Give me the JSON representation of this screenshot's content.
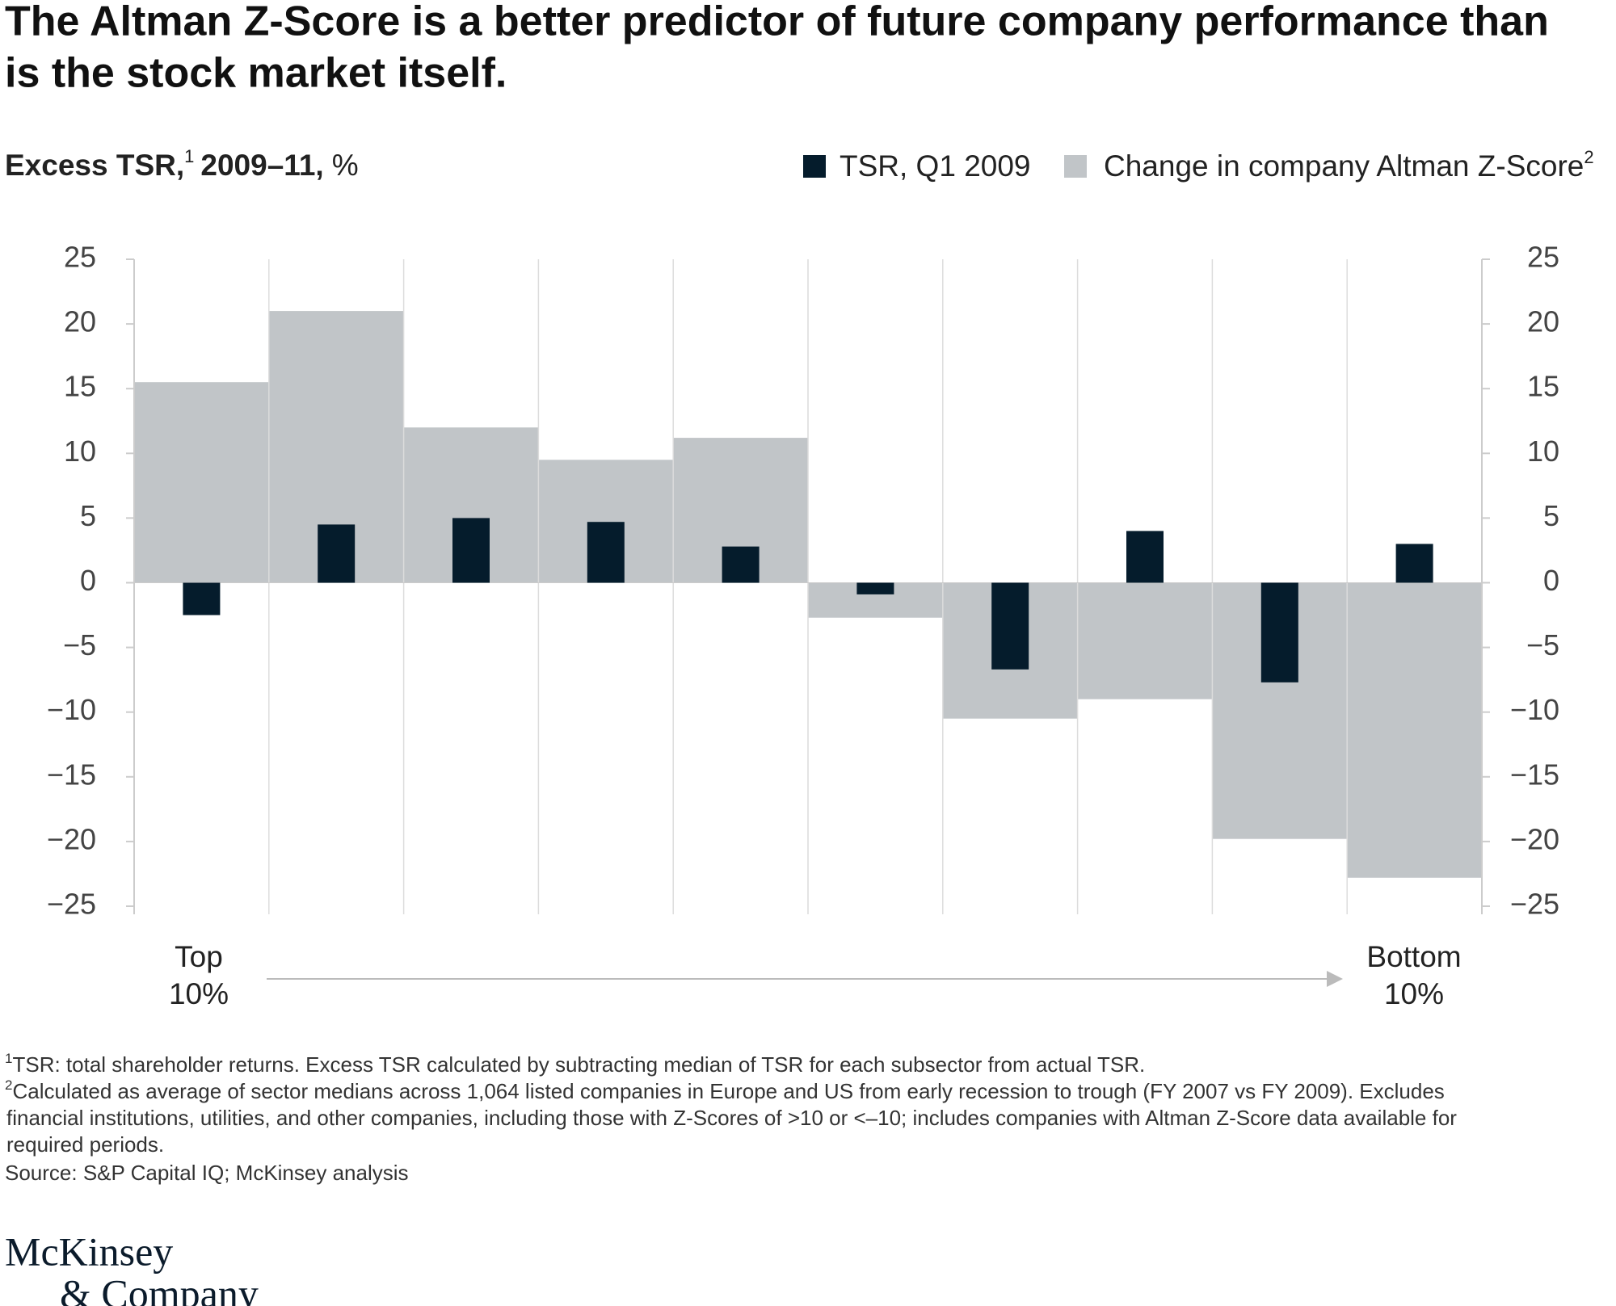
{
  "chart_data": {
    "type": "bar",
    "title": [
      "The Altman Z-Score is a better predictor of future company performance than",
      "is the stock market itself."
    ],
    "y_label": {
      "text": "Excess TSR,",
      "note": "1",
      "years": "2009–11,",
      "unit": "%"
    },
    "categories": [
      null,
      null,
      null,
      null,
      null,
      null,
      null,
      null,
      null,
      null
    ],
    "series": [
      {
        "name": "TSR, Q1 2009",
        "color": "#051c2c",
        "values": [
          -2.5,
          4.5,
          5,
          4.7,
          2.8,
          -0.9,
          -6.7,
          4,
          -7.7,
          3
        ]
      },
      {
        "name": "Change in company Altman Z-Score",
        "name_note": "2",
        "color": "#c1c5c8",
        "values": [
          15.5,
          21,
          12,
          9.5,
          11.2,
          -2.7,
          -10.5,
          -9,
          -19.8,
          -22.8
        ]
      }
    ],
    "legend": "top-right",
    "ylim": [
      -25,
      25
    ],
    "yticks": [
      {
        "value": -25,
        "label": "−25"
      },
      {
        "value": -20,
        "label": "−20"
      },
      {
        "value": -15,
        "label": "−15"
      },
      {
        "value": -10,
        "label": "−10"
      },
      {
        "value": -5,
        "label": "−5"
      },
      0,
      5,
      10,
      15,
      20,
      25
    ],
    "y2lim": [
      -25,
      25
    ],
    "y2ticks": [
      {
        "value": -25,
        "label": "−25"
      },
      {
        "value": -20,
        "label": "−20"
      },
      {
        "value": -15,
        "label": "−15"
      },
      {
        "value": -10,
        "label": "−10"
      },
      {
        "value": -5,
        "label": "−5"
      },
      0,
      5,
      10,
      15,
      20,
      25
    ],
    "start_label": [
      "Top",
      "10%"
    ],
    "end_label": [
      "Bottom",
      "10%"
    ],
    "notes": [
      {
        "mark": "1",
        "lines": [
          "TSR: total shareholder returns. Excess TSR calculated by subtracting median of TSR for each subsector from actual TSR."
        ]
      },
      {
        "mark": "2",
        "lines": [
          "Calculated as average of sector medians across 1,064 listed companies in Europe and US from early recession to trough (FY 2007 vs FY 2009). Excludes",
          "financial institutions, utilities, and other companies, including those with Z-Scores of >10 or <–10; includes companies with Altman Z-Score data available for",
          "required periods."
        ]
      }
    ],
    "source": "Source: S&P Capital IQ; McKinsey analysis",
    "logo": [
      "McKinsey",
      "& Company"
    ]
  }
}
